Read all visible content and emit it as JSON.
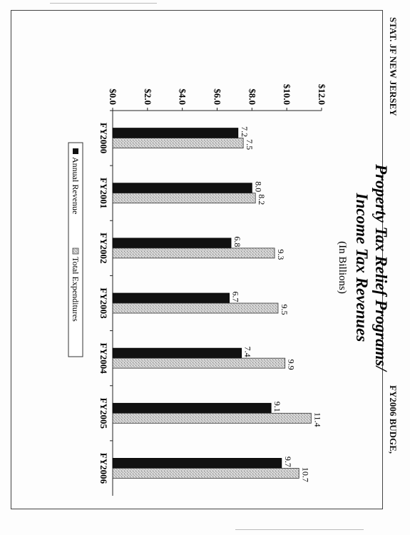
{
  "header": {
    "left": "STAT. JF NEW JERSEY",
    "right": "FY2006 BUDGE,"
  },
  "chart_data": {
    "type": "bar",
    "orientation": "vertical, page rotated 90 degrees clockwise",
    "title": "Property Tax Relief Programs/",
    "title_line2": "Income Tax Revenues",
    "subtitle": "(In Billions)",
    "xlabel": "",
    "ylabel": "",
    "categories": [
      "FY2000",
      "FY2001",
      "FY2002",
      "FY2003",
      "FY2004",
      "FY2005",
      "FY2006"
    ],
    "series": [
      {
        "name": "Annual Revenue",
        "values": [
          7.2,
          8.0,
          6.8,
          6.7,
          7.4,
          9.1,
          9.7
        ],
        "color": "#111111"
      },
      {
        "name": "Total Expenditures",
        "values": [
          7.5,
          8.2,
          9.3,
          9.5,
          9.9,
          11.4,
          10.7
        ],
        "color": "#c4c4c4"
      }
    ],
    "value_labels": [
      [
        "7.2",
        "8.0",
        "6.8",
        "6.7",
        "7.4",
        "9.1",
        "9.7"
      ],
      [
        "7.5",
        "8.2",
        "9.3",
        "9.5",
        "9.9",
        "11.4",
        "10.7"
      ]
    ],
    "ylim": [
      0,
      12
    ],
    "y_ticks": [
      0,
      2,
      4,
      6,
      8,
      10,
      12
    ],
    "y_tick_labels": [
      "$0.0",
      "$2.0",
      "$4.0",
      "$6.0",
      "$8.0",
      "$10.0",
      "$12.0"
    ],
    "grid": false,
    "legend_position": "bottom"
  }
}
